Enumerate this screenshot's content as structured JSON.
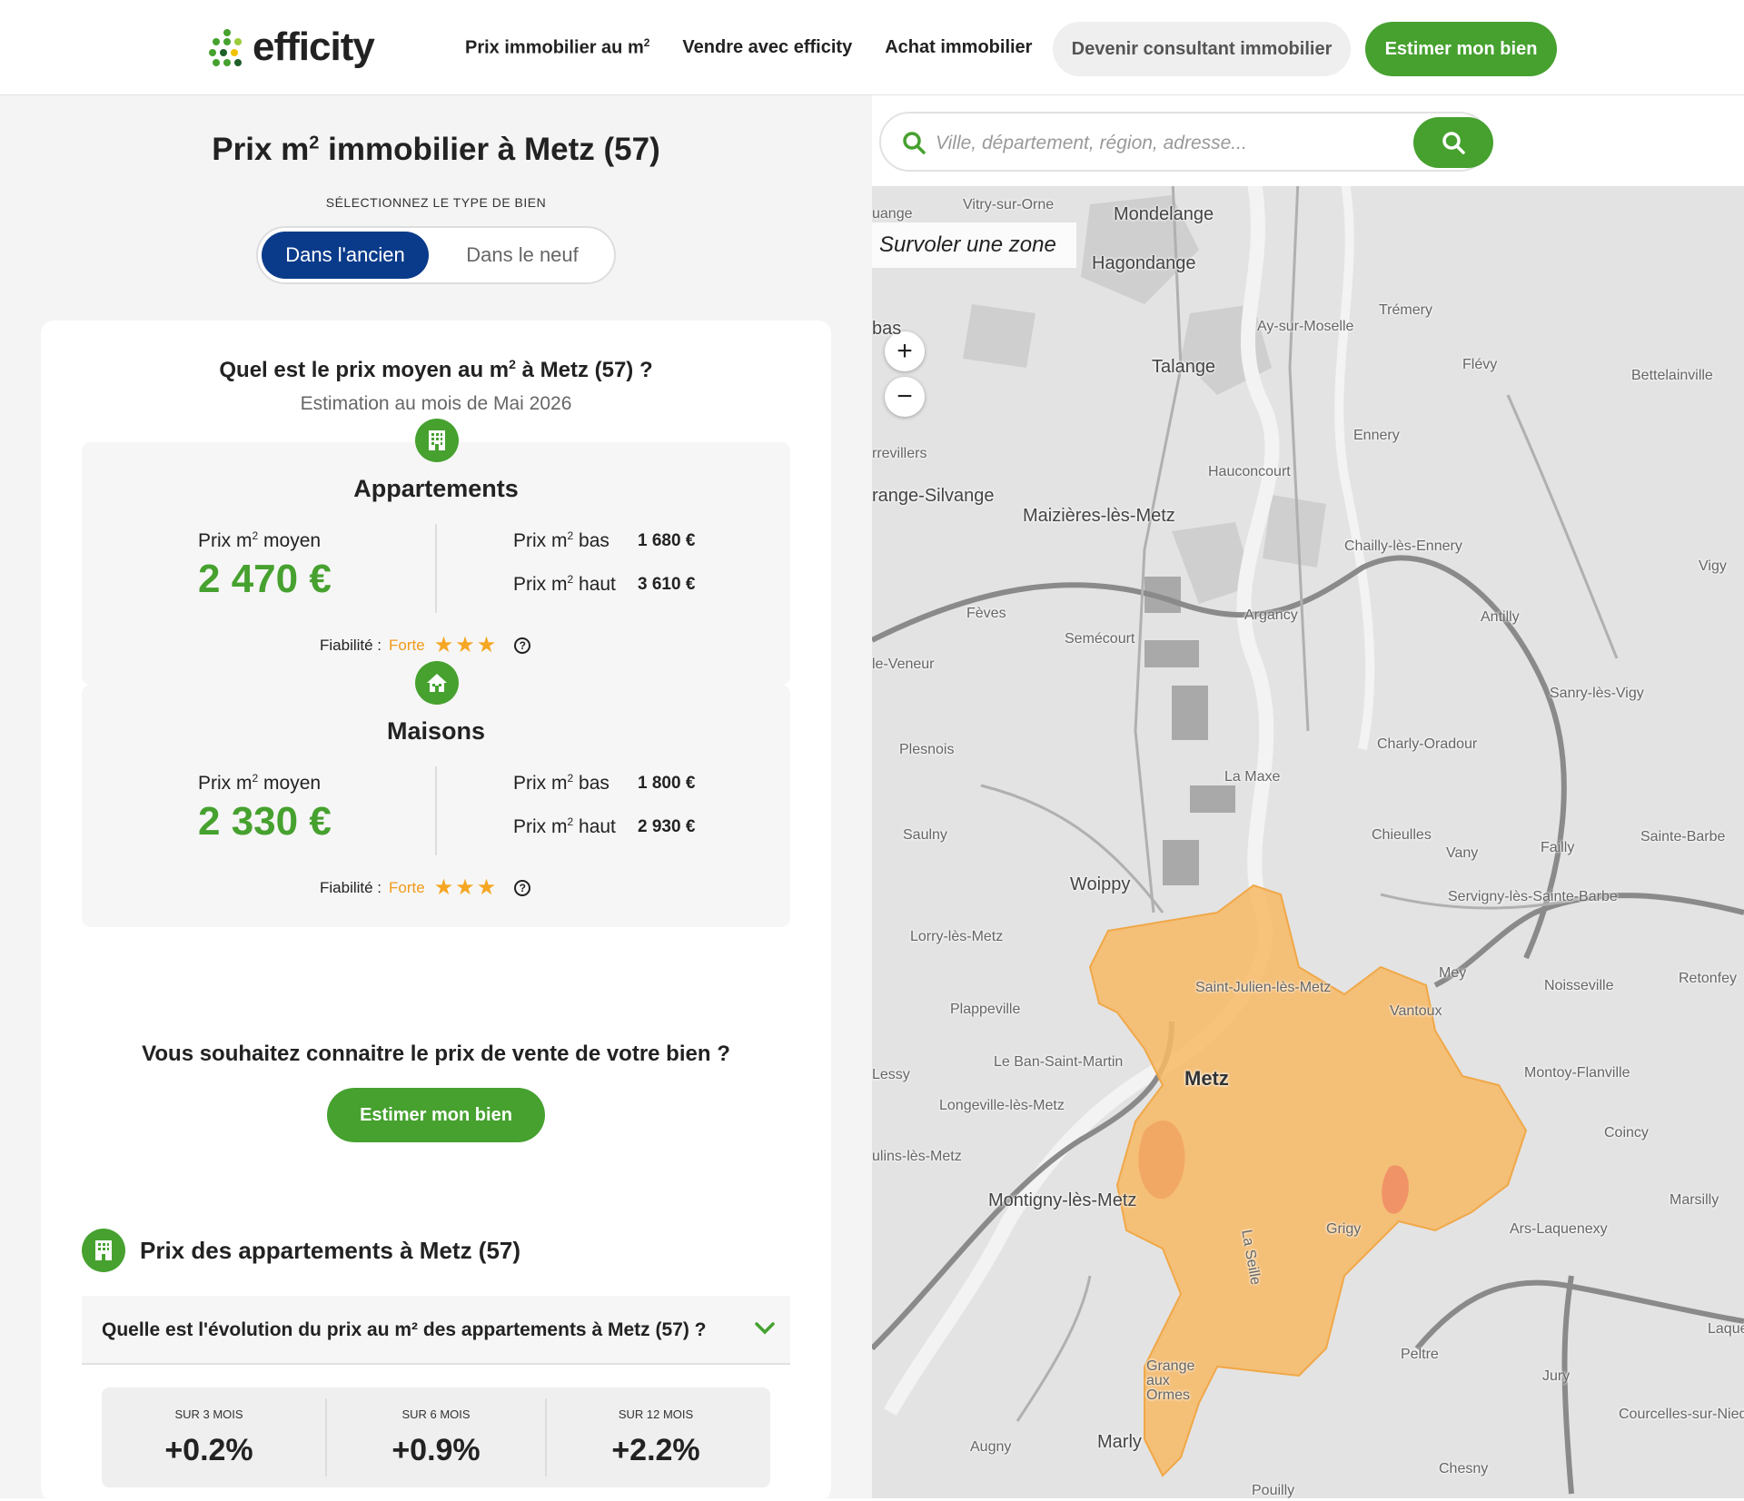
{
  "header": {
    "logo_text": "efficity",
    "nav": [
      {
        "label": "Prix immobilier au m",
        "sup": "2"
      },
      {
        "label": "Vendre avec efficity"
      },
      {
        "label": "Achat immobilier"
      }
    ],
    "consultant_button": "Devenir consultant immobilier",
    "estimate_button": "Estimer mon bien"
  },
  "left": {
    "title_pre": "Prix m",
    "title_sup": "2",
    "title_post": " immobilier à Metz (57)",
    "select_label": "SÉLECTIONNEZ LE TYPE DE BIEN",
    "toggle": {
      "active": "Dans l'ancien",
      "inactive": "Dans le neuf"
    },
    "question_pre": "Quel est le prix moyen au m",
    "question_sup": "2",
    "question_post": " à Metz (57) ?",
    "estimation_date": "Estimation au mois de Mai 2026",
    "cards": [
      {
        "type": "Appartements",
        "avg_label": "Prix m",
        "avg_label_post": " moyen",
        "avg_value": "2 470 €",
        "low_label": "Prix m",
        "low_label_post": " bas",
        "low_value": "1 680 €",
        "high_label": "Prix m",
        "high_label_post": " haut",
        "high_value": "3 610 €",
        "reliability_label": "Fiabilité :",
        "reliability_value": "Forte",
        "stars": 3,
        "icon": "building-icon"
      },
      {
        "type": "Maisons",
        "avg_label": "Prix m",
        "avg_label_post": " moyen",
        "avg_value": "2 330 €",
        "low_label": "Prix m",
        "low_label_post": " bas",
        "low_value": "1 800 €",
        "high_label": "Prix m",
        "high_label_post": " haut",
        "high_value": "2 930 €",
        "reliability_label": "Fiabilité :",
        "reliability_value": "Forte",
        "stars": 3,
        "icon": "house-icon"
      }
    ],
    "sell_question": "Vous souhaitez connaitre le prix de vente de votre bien ?",
    "sell_button": "Estimer mon bien",
    "section_title": "Prix des appartements à Metz (57)",
    "accordion_title": "Quelle est l'évolution du prix au m² des appartements à Metz (57) ?",
    "evolution": [
      {
        "label": "SUR 3 MOIS",
        "value": "+0.2%"
      },
      {
        "label": "SUR 6 MOIS",
        "value": "+0.9%"
      },
      {
        "label": "SUR 12 MOIS",
        "value": "+2.2%"
      }
    ]
  },
  "map": {
    "search_placeholder": "Ville, département, région, adresse...",
    "hover_label": "Survoler une zone",
    "zoom_in": "+",
    "zoom_out": "−",
    "towns": [
      "Vitry-sur-Orne",
      "Mondelange",
      "Hagondange",
      "Trémery",
      "Ay-sur-Moselle",
      "Talange",
      "Flévy",
      "Bettelainville",
      "Ennery",
      "Hauconcourt",
      "Maizières-lès-Metz",
      "Chailly-lès-Ennery",
      "Vigy",
      "Fèves",
      "Argancy",
      "Semécourt",
      "Antilly",
      "Sanry-lès-Vigy",
      "Plesnois",
      "Charly-Oradour",
      "La Maxe",
      "Saulny",
      "Chieulles",
      "Vany",
      "Failly",
      "Sainte-Barbe",
      "Woippy",
      "Servigny-lès-Sainte-Barbe",
      "Lorry-lès-Metz",
      "Mey",
      "Noisseville",
      "Retonfey",
      "Saint-Julien-lès-Metz",
      "Plappeville",
      "Vantoux",
      "Le Ban-Saint-Martin",
      "Metz",
      "Montoy-Flanville",
      "Lessy",
      "Longeville-lès-Metz",
      "Coincy",
      "Montigny-lès-Metz",
      "Marsilly",
      "Grigy",
      "Ars-Laquenexy",
      "Peltre",
      "Jury",
      "Grange aux Ormes",
      "Courcelles-sur-Nied",
      "Augny",
      "Marly",
      "Chesny",
      "Pouilly",
      "La Seille",
      "range-Silvange",
      "rrevillers",
      "le-Veneur",
      "bas",
      "uange",
      "ulins-lès-Metz",
      "Laque"
    ]
  },
  "colors": {
    "brand_green": "#46a12f",
    "toggle_blue": "#0a3b8a",
    "reliability_orange": "#f29a1a",
    "zone_orange": "#f7b964"
  }
}
